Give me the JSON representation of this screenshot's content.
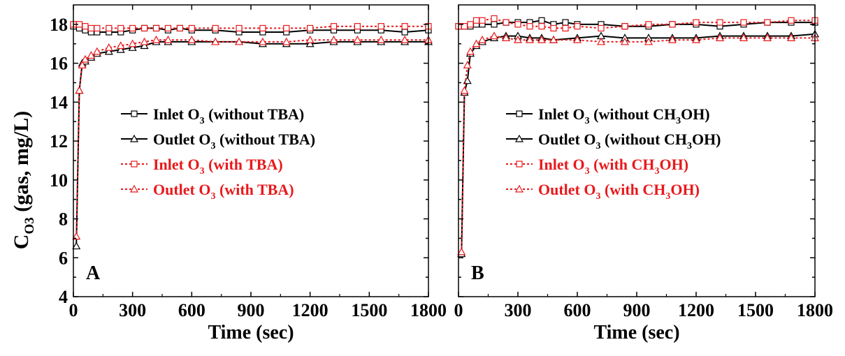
{
  "figure": {
    "ylabel_main": "C",
    "ylabel_sub": "O3",
    "ylabel_rest": " (gas, mg/L)"
  },
  "colors": {
    "black": "#000000",
    "red": "#e8191c"
  },
  "chart_data": [
    {
      "type": "line",
      "panel_label": "A",
      "xlabel": "Time (sec)",
      "ylabel": "C O3 (gas, mg/L)",
      "xlim": [
        0,
        1800
      ],
      "ylim": [
        4,
        19
      ],
      "xticks": [
        "0",
        "300",
        "600",
        "900",
        "1200",
        "1500",
        "1800"
      ],
      "yticks": [
        "4",
        "6",
        "8",
        "10",
        "12",
        "14",
        "16",
        "18"
      ],
      "legend_position": "center-left",
      "series": [
        {
          "name": "Inlet O3 (without TBA)",
          "legend": {
            "pre": "Inlet O",
            "sub": "3",
            "post": " (without TBA)"
          },
          "color": "#000000",
          "dash": "solid",
          "marker": "square",
          "x": [
            0,
            30,
            60,
            90,
            120,
            180,
            240,
            300,
            360,
            420,
            480,
            540,
            600,
            720,
            840,
            960,
            1080,
            1200,
            1320,
            1440,
            1560,
            1680,
            1800
          ],
          "y": [
            17.9,
            17.8,
            17.7,
            17.6,
            17.6,
            17.6,
            17.6,
            17.7,
            17.8,
            17.8,
            17.7,
            17.8,
            17.7,
            17.7,
            17.6,
            17.6,
            17.6,
            17.7,
            17.7,
            17.7,
            17.7,
            17.6,
            17.7
          ]
        },
        {
          "name": "Outlet O3 (without TBA)",
          "legend": {
            "pre": "Outlet O",
            "sub": "3",
            "post": " (without TBA)"
          },
          "color": "#000000",
          "dash": "solid",
          "marker": "triangle",
          "x": [
            15,
            30,
            45,
            60,
            90,
            120,
            180,
            240,
            300,
            360,
            420,
            480,
            600,
            720,
            840,
            960,
            1080,
            1200,
            1320,
            1440,
            1560,
            1680,
            1800
          ],
          "y": [
            6.6,
            14.6,
            16.0,
            16.1,
            16.3,
            16.5,
            16.6,
            16.7,
            16.8,
            16.9,
            17.1,
            17.1,
            17.1,
            17.1,
            17.1,
            17.0,
            17.0,
            17.0,
            17.1,
            17.1,
            17.1,
            17.1,
            17.1
          ]
        },
        {
          "name": "Inlet O3 (with TBA)",
          "legend": {
            "pre": "Inlet O",
            "sub": "3",
            "post": " (with TBA)"
          },
          "color": "#e8191c",
          "dash": "dotted",
          "marker": "square",
          "x": [
            0,
            30,
            60,
            90,
            120,
            180,
            240,
            300,
            360,
            420,
            480,
            540,
            600,
            720,
            840,
            960,
            1080,
            1200,
            1320,
            1440,
            1560,
            1680,
            1800
          ],
          "y": [
            18.0,
            18.0,
            17.9,
            17.8,
            17.8,
            17.8,
            17.8,
            17.8,
            17.8,
            17.8,
            17.8,
            17.8,
            17.8,
            17.8,
            17.8,
            17.8,
            17.8,
            17.8,
            17.9,
            17.9,
            17.9,
            17.9,
            17.9
          ]
        },
        {
          "name": "Outlet O3 (with TBA)",
          "legend": {
            "pre": "Outlet O",
            "sub": "3",
            "post": " (with TBA)"
          },
          "color": "#e8191c",
          "dash": "dotted",
          "marker": "triangle",
          "x": [
            15,
            30,
            45,
            60,
            90,
            120,
            180,
            240,
            300,
            360,
            420,
            480,
            600,
            720,
            840,
            960,
            1080,
            1200,
            1320,
            1440,
            1560,
            1680,
            1800
          ],
          "y": [
            7.1,
            14.6,
            15.9,
            16.2,
            16.4,
            16.6,
            16.8,
            16.9,
            17.0,
            17.1,
            17.2,
            17.2,
            17.2,
            17.1,
            17.1,
            17.1,
            17.1,
            17.2,
            17.2,
            17.2,
            17.2,
            17.2,
            17.2
          ]
        }
      ]
    },
    {
      "type": "line",
      "panel_label": "B",
      "xlabel": "Time (sec)",
      "ylabel": "",
      "xlim": [
        0,
        1800
      ],
      "ylim": [
        4,
        19
      ],
      "xticks": [
        "0",
        "300",
        "600",
        "900",
        "1200",
        "1500",
        "1800"
      ],
      "yticks": [],
      "legend_position": "center-left",
      "series": [
        {
          "name": "Inlet O3 (without CH3OH)",
          "legend": {
            "pre": "Inlet O",
            "sub": "3",
            "post": " (without CH",
            "sub2": "3",
            "post2": "OH)"
          },
          "color": "#000000",
          "dash": "solid",
          "marker": "square",
          "x": [
            0,
            30,
            60,
            90,
            120,
            180,
            240,
            300,
            360,
            420,
            480,
            540,
            600,
            720,
            840,
            960,
            1080,
            1200,
            1320,
            1440,
            1560,
            1680,
            1800
          ],
          "y": [
            17.9,
            17.9,
            17.9,
            18.0,
            18.0,
            18.0,
            18.1,
            18.1,
            18.1,
            18.2,
            18.0,
            18.1,
            18.0,
            18.0,
            17.9,
            17.9,
            18.0,
            18.0,
            17.9,
            18.0,
            18.1,
            18.1,
            18.1
          ]
        },
        {
          "name": "Outlet O3 (without CH3OH)",
          "legend": {
            "pre": "Outlet O",
            "sub": "3",
            "post": " (without CH",
            "sub2": "3",
            "post2": "OH)"
          },
          "color": "#000000",
          "dash": "solid",
          "marker": "triangle",
          "x": [
            15,
            30,
            45,
            60,
            90,
            120,
            180,
            240,
            300,
            360,
            420,
            480,
            600,
            720,
            840,
            960,
            1080,
            1200,
            1320,
            1440,
            1560,
            1680,
            1800
          ],
          "y": [
            6.2,
            14.5,
            15.1,
            16.5,
            16.9,
            17.1,
            17.3,
            17.4,
            17.4,
            17.3,
            17.3,
            17.2,
            17.3,
            17.4,
            17.3,
            17.3,
            17.3,
            17.3,
            17.4,
            17.4,
            17.4,
            17.4,
            17.5
          ]
        },
        {
          "name": "Inlet O3 (with CH3OH)",
          "legend": {
            "pre": "Inlet O",
            "sub": "3",
            "post": " (with CH",
            "sub2": "3",
            "post2": "OH)"
          },
          "color": "#e8191c",
          "dash": "dotted",
          "marker": "square",
          "x": [
            0,
            30,
            60,
            90,
            120,
            180,
            240,
            300,
            360,
            420,
            480,
            540,
            600,
            720,
            840,
            960,
            1080,
            1200,
            1320,
            1440,
            1560,
            1680,
            1800
          ],
          "y": [
            17.9,
            17.9,
            18.0,
            18.2,
            18.2,
            18.3,
            18.1,
            18.0,
            17.9,
            17.9,
            17.8,
            17.8,
            17.9,
            17.8,
            17.9,
            18.0,
            18.0,
            18.1,
            18.1,
            18.1,
            18.1,
            18.2,
            18.2
          ]
        },
        {
          "name": "Outlet O3 (with CH3OH)",
          "legend": {
            "pre": "Outlet O",
            "sub": "3",
            "post": " (with CH",
            "sub2": "3",
            "post2": "OH)"
          },
          "color": "#e8191c",
          "dash": "dotted",
          "marker": "triangle",
          "x": [
            15,
            30,
            45,
            60,
            90,
            120,
            180,
            240,
            300,
            360,
            420,
            480,
            600,
            720,
            840,
            960,
            1080,
            1200,
            1320,
            1440,
            1560,
            1680,
            1800
          ],
          "y": [
            6.3,
            14.6,
            15.9,
            16.6,
            17.0,
            17.2,
            17.4,
            17.3,
            17.2,
            17.2,
            17.2,
            17.2,
            17.2,
            17.1,
            17.1,
            17.1,
            17.2,
            17.2,
            17.3,
            17.3,
            17.3,
            17.3,
            17.3
          ]
        }
      ]
    }
  ]
}
